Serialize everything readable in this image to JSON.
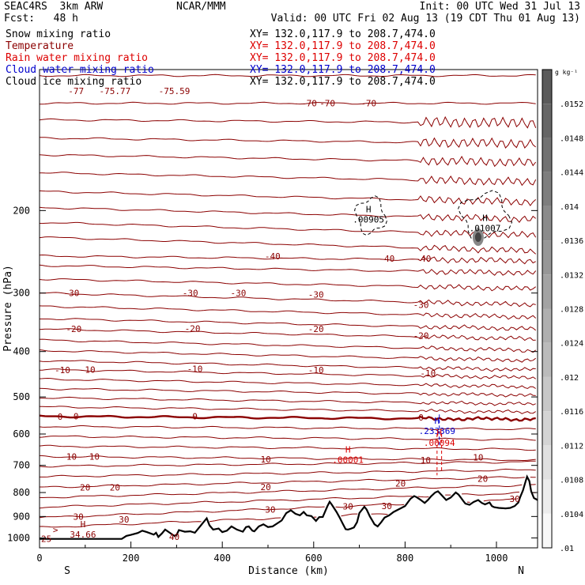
{
  "header": {
    "model": "SEAC4RS  3km ARW",
    "fcst": "Fcst:   48 h",
    "org": "NCAR/MMM",
    "init": "Init: 00 UTC Wed 31 Jul 13",
    "valid": "Valid: 00 UTC Fri 02 Aug 13 (19 CDT Thu 01 Aug 13)"
  },
  "fields": [
    {
      "label": "Snow mixing ratio",
      "xy": "XY= 132.0,117.9 to 208.7,474.0",
      "color": "#000000"
    },
    {
      "label": "Temperature",
      "xy": "XY= 132.0,117.9 to 208.7,474.0",
      "color": "#8b0000"
    },
    {
      "label": "Rain water mixing ratio",
      "xy": "XY= 132.0,117.9 to 208.7,474.0",
      "color": "#dd0000"
    },
    {
      "label": "Cloud water mixing ratio",
      "xy": "XY= 132.0,117.9 to 208.7,474.0",
      "color": "#0000cc"
    },
    {
      "label": "Cloud ice mixing ratio",
      "xy": "XY= 132.0,117.9 to 208.7,474.0",
      "color": "#000000"
    }
  ],
  "chart_data": {
    "type": "cross-section",
    "xlabel": "Distance (km)",
    "ylabel": "Pressure (hPa)",
    "x_ticks": [
      0,
      200,
      400,
      600,
      800,
      1000
    ],
    "y_ticks": [
      200,
      300,
      400,
      500,
      600,
      700,
      800,
      900,
      1000
    ],
    "xlim": [
      0,
      1090
    ],
    "ylim": [
      1050,
      100
    ],
    "y_scale": "log",
    "end_labels": {
      "left": "S",
      "right": "N"
    },
    "colorbar": {
      "unit": "g kg⁻¹",
      "ticks": [
        ".0152",
        ".0148",
        ".0144",
        ".014",
        ".0136",
        ".0132",
        ".0128",
        ".0124",
        ".012",
        ".0116",
        ".0112",
        ".0108",
        ".0104",
        ".01"
      ]
    },
    "temperature_contour_labels": [
      {
        "text": "-75.59",
        "x": 295,
        "p": 111
      },
      {
        "text": "-75.77",
        "x": 165,
        "p": 111
      },
      {
        "text": "-77",
        "x": 80,
        "p": 111
      },
      {
        "text": "-70",
        "x": 590,
        "p": 118
      },
      {
        "text": "-70",
        "x": 630,
        "p": 118
      },
      {
        "text": "-70",
        "x": 720,
        "p": 118
      },
      {
        "text": "-40",
        "x": 510,
        "p": 250
      },
      {
        "text": "-40",
        "x": 760,
        "p": 253
      },
      {
        "text": "-40",
        "x": 840,
        "p": 253
      },
      {
        "text": "-30",
        "x": 70,
        "p": 300
      },
      {
        "text": "-30",
        "x": 330,
        "p": 300
      },
      {
        "text": "-30",
        "x": 435,
        "p": 300
      },
      {
        "text": "-30",
        "x": 605,
        "p": 302
      },
      {
        "text": "-30",
        "x": 835,
        "p": 318
      },
      {
        "text": "-20",
        "x": 75,
        "p": 358
      },
      {
        "text": "-20",
        "x": 335,
        "p": 357
      },
      {
        "text": "-20",
        "x": 605,
        "p": 358
      },
      {
        "text": "-20",
        "x": 835,
        "p": 370
      },
      {
        "text": "-10",
        "x": 50,
        "p": 438
      },
      {
        "text": "-10",
        "x": 105,
        "p": 437
      },
      {
        "text": "-10",
        "x": 340,
        "p": 435
      },
      {
        "text": "-10",
        "x": 605,
        "p": 438
      },
      {
        "text": "-10",
        "x": 850,
        "p": 445
      },
      {
        "text": "0",
        "x": 45,
        "p": 551
      },
      {
        "text": "0",
        "x": 80,
        "p": 550
      },
      {
        "text": "0",
        "x": 340,
        "p": 550
      },
      {
        "text": "0",
        "x": 835,
        "p": 553
      },
      {
        "text": "10",
        "x": 70,
        "p": 670
      },
      {
        "text": "10",
        "x": 120,
        "p": 670
      },
      {
        "text": "10",
        "x": 495,
        "p": 680
      },
      {
        "text": "10",
        "x": 845,
        "p": 682
      },
      {
        "text": "10",
        "x": 960,
        "p": 673
      },
      {
        "text": "20",
        "x": 100,
        "p": 780
      },
      {
        "text": "20",
        "x": 165,
        "p": 780
      },
      {
        "text": "20",
        "x": 495,
        "p": 778
      },
      {
        "text": "20",
        "x": 790,
        "p": 765
      },
      {
        "text": "20",
        "x": 970,
        "p": 748
      },
      {
        "text": "30",
        "x": 85,
        "p": 900
      },
      {
        "text": "30",
        "x": 185,
        "p": 913
      },
      {
        "text": "30",
        "x": 505,
        "p": 869
      },
      {
        "text": "30",
        "x": 675,
        "p": 856
      },
      {
        "text": "30",
        "x": 760,
        "p": 854
      },
      {
        "text": "30",
        "x": 1040,
        "p": 825
      },
      {
        "text": "40",
        "x": 295,
        "p": 995
      },
      {
        "text": "25",
        "x": 15,
        "p": 1005
      }
    ],
    "extrema": [
      {
        "field": "snow",
        "text": ".00905",
        "x": 720,
        "p": 208
      },
      {
        "field": "snow",
        "text": ".01007",
        "x": 975,
        "p": 217
      },
      {
        "field": "cloud_water",
        "text": ".233369",
        "x": 870,
        "p": 588
      },
      {
        "field": "rain",
        "text": ".00094",
        "x": 875,
        "p": 624
      },
      {
        "field": "rain",
        "text": ".00001",
        "x": 675,
        "p": 678
      },
      {
        "field": "temperature",
        "text": "34.66",
        "x": 95,
        "p": 980
      }
    ],
    "extra_text": [
      {
        "text": ">",
        "x": 35,
        "p": 960,
        "field": "temperature"
      }
    ],
    "terrain": [
      [
        0,
        1005
      ],
      [
        180,
        1005
      ],
      [
        190,
        990
      ],
      [
        200,
        985
      ],
      [
        215,
        976
      ],
      [
        225,
        965
      ],
      [
        235,
        972
      ],
      [
        250,
        984
      ],
      [
        255,
        975
      ],
      [
        260,
        995
      ],
      [
        268,
        978
      ],
      [
        275,
        960
      ],
      [
        285,
        975
      ],
      [
        295,
        990
      ],
      [
        300,
        985
      ],
      [
        305,
        962
      ],
      [
        318,
        970
      ],
      [
        330,
        968
      ],
      [
        340,
        975
      ],
      [
        358,
        928
      ],
      [
        366,
        908
      ],
      [
        372,
        940
      ],
      [
        380,
        960
      ],
      [
        392,
        955
      ],
      [
        400,
        972
      ],
      [
        410,
        965
      ],
      [
        420,
        945
      ],
      [
        432,
        960
      ],
      [
        445,
        970
      ],
      [
        452,
        948
      ],
      [
        458,
        945
      ],
      [
        466,
        965
      ],
      [
        470,
        968
      ],
      [
        480,
        945
      ],
      [
        490,
        935
      ],
      [
        500,
        948
      ],
      [
        510,
        945
      ],
      [
        530,
        918
      ],
      [
        540,
        885
      ],
      [
        550,
        873
      ],
      [
        560,
        888
      ],
      [
        570,
        895
      ],
      [
        578,
        880
      ],
      [
        585,
        895
      ],
      [
        595,
        898
      ],
      [
        605,
        920
      ],
      [
        612,
        903
      ],
      [
        620,
        902
      ],
      [
        630,
        856
      ],
      [
        635,
        837
      ],
      [
        640,
        850
      ],
      [
        650,
        880
      ],
      [
        657,
        905
      ],
      [
        663,
        930
      ],
      [
        670,
        958
      ],
      [
        675,
        960
      ],
      [
        680,
        957
      ],
      [
        688,
        950
      ],
      [
        695,
        925
      ],
      [
        700,
        885
      ],
      [
        706,
        870
      ],
      [
        711,
        858
      ],
      [
        716,
        870
      ],
      [
        723,
        900
      ],
      [
        728,
        917
      ],
      [
        733,
        935
      ],
      [
        740,
        945
      ],
      [
        748,
        925
      ],
      [
        755,
        905
      ],
      [
        765,
        895
      ],
      [
        775,
        880
      ],
      [
        790,
        865
      ],
      [
        800,
        855
      ],
      [
        812,
        825
      ],
      [
        820,
        814
      ],
      [
        825,
        818
      ],
      [
        833,
        828
      ],
      [
        843,
        842
      ],
      [
        850,
        830
      ],
      [
        857,
        815
      ],
      [
        866,
        800
      ],
      [
        872,
        795
      ],
      [
        880,
        810
      ],
      [
        890,
        830
      ],
      [
        900,
        820
      ],
      [
        911,
        800
      ],
      [
        917,
        808
      ],
      [
        922,
        820
      ],
      [
        927,
        833
      ],
      [
        932,
        845
      ],
      [
        941,
        850
      ],
      [
        950,
        838
      ],
      [
        960,
        830
      ],
      [
        968,
        842
      ],
      [
        975,
        848
      ],
      [
        985,
        840
      ],
      [
        990,
        855
      ],
      [
        995,
        860
      ],
      [
        1005,
        863
      ],
      [
        1020,
        865
      ],
      [
        1030,
        863
      ],
      [
        1040,
        855
      ],
      [
        1048,
        840
      ],
      [
        1052,
        818
      ],
      [
        1058,
        792
      ],
      [
        1064,
        756
      ],
      [
        1067,
        740
      ],
      [
        1072,
        756
      ],
      [
        1076,
        795
      ],
      [
        1082,
        822
      ],
      [
        1090,
        830
      ]
    ],
    "temperature_levels": [
      {
        "p0": 103,
        "dp": 0,
        "bold": false
      },
      {
        "p0": 118,
        "dp": 0,
        "bold": false
      },
      {
        "p0": 128,
        "dp": 2,
        "bold": false
      },
      {
        "p0": 140,
        "dp": 4,
        "bold": false
      },
      {
        "p0": 152,
        "dp": 6,
        "bold": false
      },
      {
        "p0": 166,
        "dp": 8,
        "bold": false
      },
      {
        "p0": 182,
        "dp": 10,
        "bold": false
      },
      {
        "p0": 197,
        "dp": 12,
        "bold": false
      },
      {
        "p0": 212,
        "dp": 14,
        "bold": false
      },
      {
        "p0": 228,
        "dp": 16,
        "bold": false
      },
      {
        "p0": 250,
        "dp": 6,
        "bold": false
      },
      {
        "p0": 262,
        "dp": 10,
        "bold": false
      },
      {
        "p0": 280,
        "dp": 14,
        "bold": false
      },
      {
        "p0": 300,
        "dp": 18,
        "bold": false
      },
      {
        "p0": 320,
        "dp": 18,
        "bold": false
      },
      {
        "p0": 340,
        "dp": 18,
        "bold": false
      },
      {
        "p0": 358,
        "dp": 18,
        "bold": false
      },
      {
        "p0": 378,
        "dp": 20,
        "bold": false
      },
      {
        "p0": 398,
        "dp": 20,
        "bold": false
      },
      {
        "p0": 418,
        "dp": 20,
        "bold": false
      },
      {
        "p0": 437,
        "dp": 18,
        "bold": false
      },
      {
        "p0": 458,
        "dp": 18,
        "bold": false
      },
      {
        "p0": 480,
        "dp": 16,
        "bold": false
      },
      {
        "p0": 502,
        "dp": 16,
        "bold": false
      },
      {
        "p0": 525,
        "dp": 14,
        "bold": false
      },
      {
        "p0": 550,
        "dp": 8,
        "bold": true
      },
      {
        "p0": 578,
        "dp": 8,
        "bold": false
      },
      {
        "p0": 607,
        "dp": 10,
        "bold": false
      },
      {
        "p0": 637,
        "dp": 10,
        "bold": false
      },
      {
        "p0": 670,
        "dp": 12,
        "bold": false
      },
      {
        "p0": 703,
        "dp": -15,
        "bold": false
      },
      {
        "p0": 740,
        "dp": -25,
        "bold": false
      },
      {
        "p0": 780,
        "dp": -40,
        "bold": false
      },
      {
        "p0": 820,
        "dp": -50,
        "bold": false
      },
      {
        "p0": 860,
        "dp": -60,
        "bold": false
      },
      {
        "p0": 905,
        "dp": -80,
        "bold": false
      },
      {
        "p0": 950,
        "dp": -90,
        "bold": false
      }
    ]
  }
}
